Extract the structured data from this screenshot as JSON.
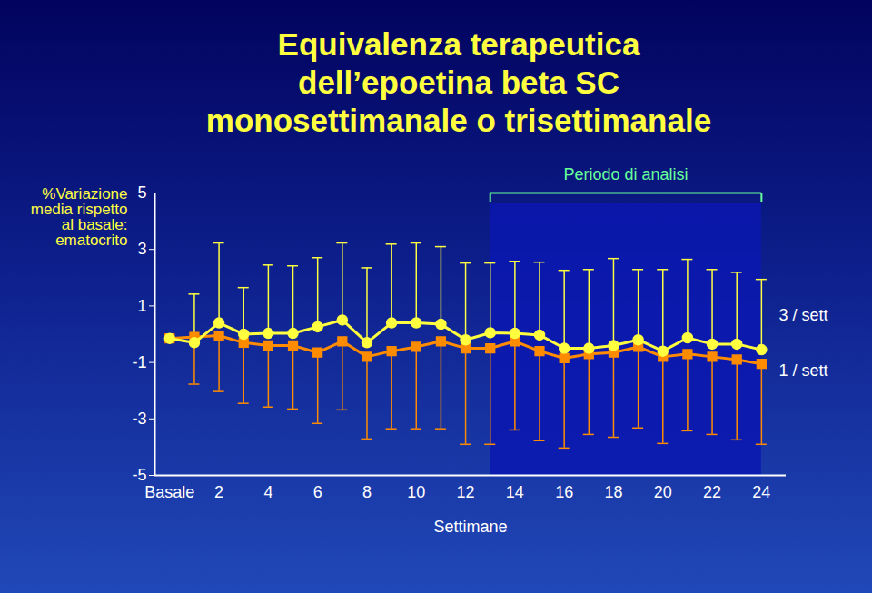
{
  "chart_data": {
    "type": "line",
    "title": "Equivalenza terapeutica\ndell’epoetina beta SC\nmonosettimanale o trisettimanale",
    "y_label": "%Variazione media rispetto al basale: ematocrito",
    "x_label": "Settimane",
    "x": [
      0,
      1,
      2,
      3,
      4,
      5,
      6,
      7,
      8,
      9,
      10,
      11,
      12,
      13,
      14,
      15,
      16,
      17,
      18,
      19,
      20,
      21,
      22,
      23,
      24
    ],
    "series": [
      {
        "name": "3 / sett",
        "color": "#ffff40",
        "marker": "circle",
        "line_style": "solid",
        "values": [
          -0.15,
          -0.3,
          0.4,
          0,
          0.03,
          0.03,
          0.26,
          0.5,
          -0.3,
          0.4,
          0.4,
          0.35,
          -0.2,
          0.05,
          0.03,
          -0.03,
          -0.5,
          -0.5,
          -0.4,
          -0.2,
          -0.6,
          -0.13,
          -0.35,
          -0.35,
          -0.55
        ],
        "error_bar_ends": [
          null,
          1.42,
          3.23,
          1.65,
          2.45,
          2.42,
          2.71,
          3.23,
          2.35,
          3.19,
          3.23,
          3.1,
          2.52,
          2.52,
          2.58,
          2.55,
          2.26,
          2.29,
          2.68,
          2.29,
          2.29,
          2.65,
          2.29,
          2.19,
          1.94
        ]
      },
      {
        "name": "1 / sett",
        "color": "#ff8c00",
        "marker": "square",
        "line_style": "solid",
        "values": [
          -0.15,
          -0.1,
          -0.05,
          -0.3,
          -0.4,
          -0.4,
          -0.65,
          -0.25,
          -0.8,
          -0.6,
          -0.45,
          -0.25,
          -0.5,
          -0.5,
          -0.25,
          -0.6,
          -0.85,
          -0.7,
          -0.65,
          -0.45,
          -0.8,
          -0.7,
          -0.8,
          -0.9,
          -1.05
        ],
        "error_bar_ends": [
          null,
          -1.77,
          -2.03,
          -2.45,
          -2.58,
          -2.65,
          -3.16,
          -2.68,
          -3.71,
          -3.35,
          -3.35,
          -3.35,
          -3.9,
          -3.9,
          -3.39,
          -3.77,
          -4.03,
          -3.55,
          -3.65,
          -3.32,
          -3.87,
          -3.42,
          -3.55,
          -3.74,
          -3.9
        ]
      }
    ],
    "annotations": [
      {
        "text": "Periodo di analisi",
        "x1": 13,
        "x2": 24
      }
    ],
    "xlim": [
      -0.6,
      25
    ],
    "xticks": [
      {
        "value": 0,
        "label": "Basale"
      },
      2,
      4,
      6,
      8,
      10,
      12,
      14,
      16,
      18,
      20,
      22,
      24
    ],
    "ylim": [
      -5,
      5
    ],
    "yticks": [
      -5,
      -3,
      -1,
      1,
      3,
      5
    ],
    "grid": false
  }
}
